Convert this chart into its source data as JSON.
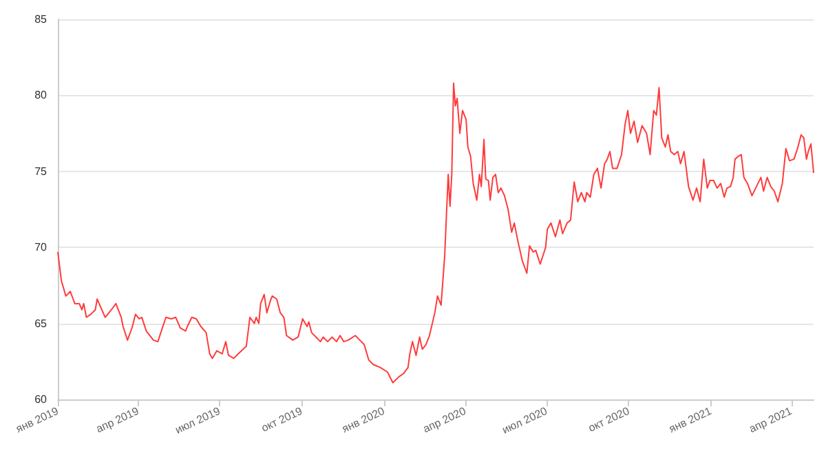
{
  "chart_data": {
    "type": "line",
    "color": "#ff3b3b",
    "line_style": "solid",
    "marker": "none",
    "grid": "y",
    "xlim": [
      "2019-01-01",
      "2021-04-26"
    ],
    "xticks": [
      {
        "value": "2019-01-01",
        "label": "янв 2019"
      },
      {
        "value": "2019-04-01",
        "label": "апр 2019"
      },
      {
        "value": "2019-07-01",
        "label": "июл 2019"
      },
      {
        "value": "2019-10-01",
        "label": "окт 2019"
      },
      {
        "value": "2020-01-01",
        "label": "янв 2020"
      },
      {
        "value": "2020-04-01",
        "label": "апр 2020"
      },
      {
        "value": "2020-07-01",
        "label": "июл 2020"
      },
      {
        "value": "2020-10-01",
        "label": "окт 2020"
      },
      {
        "value": "2021-01-01",
        "label": "янв 2021"
      },
      {
        "value": "2021-04-01",
        "label": "апр 2021"
      }
    ],
    "ylim": [
      60,
      85
    ],
    "yticks": [
      60,
      65,
      70,
      75,
      80,
      85
    ],
    "x": [
      "2019-01-01",
      "2019-01-05",
      "2019-01-10",
      "2019-01-15",
      "2019-01-20",
      "2019-01-25",
      "2019-01-28",
      "2019-01-30",
      "2019-02-02",
      "2019-02-07",
      "2019-02-12",
      "2019-02-14",
      "2019-02-17",
      "2019-02-23",
      "2019-03-02",
      "2019-03-07",
      "2019-03-13",
      "2019-03-15",
      "2019-03-20",
      "2019-03-25",
      "2019-03-29",
      "2019-04-02",
      "2019-04-05",
      "2019-04-10",
      "2019-04-18",
      "2019-04-23",
      "2019-04-28",
      "2019-05-02",
      "2019-05-08",
      "2019-05-13",
      "2019-05-18",
      "2019-05-24",
      "2019-05-26",
      "2019-05-31",
      "2019-06-05",
      "2019-06-10",
      "2019-06-16",
      "2019-06-20",
      "2019-06-23",
      "2019-06-28",
      "2019-07-04",
      "2019-07-08",
      "2019-07-11",
      "2019-07-17",
      "2019-07-22",
      "2019-07-31",
      "2019-08-04",
      "2019-08-09",
      "2019-08-11",
      "2019-08-14",
      "2019-08-16",
      "2019-08-20",
      "2019-08-23",
      "2019-08-27",
      "2019-08-29",
      "2019-09-03",
      "2019-09-07",
      "2019-09-11",
      "2019-09-14",
      "2019-09-21",
      "2019-09-27",
      "2019-10-02",
      "2019-10-07",
      "2019-10-09",
      "2019-10-12",
      "2019-10-17",
      "2019-10-22",
      "2019-10-25",
      "2019-10-30",
      "2019-11-04",
      "2019-11-09",
      "2019-11-13",
      "2019-11-17",
      "2019-11-22",
      "2019-11-30",
      "2019-12-05",
      "2019-12-10",
      "2019-12-15",
      "2019-12-20",
      "2019-12-28",
      "2020-01-05",
      "2020-01-11",
      "2020-01-18",
      "2020-01-23",
      "2020-01-28",
      "2020-01-30",
      "2020-02-02",
      "2020-02-06",
      "2020-02-10",
      "2020-02-13",
      "2020-02-17",
      "2020-02-21",
      "2020-02-27",
      "2020-03-01",
      "2020-03-05",
      "2020-03-09",
      "2020-03-13",
      "2020-03-15",
      "2020-03-17",
      "2020-03-19",
      "2020-03-21",
      "2020-03-23",
      "2020-03-26",
      "2020-03-29",
      "2020-04-02",
      "2020-04-04",
      "2020-04-07",
      "2020-04-10",
      "2020-04-14",
      "2020-04-17",
      "2020-04-19",
      "2020-04-22",
      "2020-04-24",
      "2020-04-27",
      "2020-04-29",
      "2020-05-02",
      "2020-05-05",
      "2020-05-08",
      "2020-05-11",
      "2020-05-15",
      "2020-05-19",
      "2020-05-23",
      "2020-05-26",
      "2020-05-30",
      "2020-06-04",
      "2020-06-09",
      "2020-06-12",
      "2020-06-16",
      "2020-06-19",
      "2020-06-24",
      "2020-06-30",
      "2020-07-02",
      "2020-07-06",
      "2020-07-11",
      "2020-07-16",
      "2020-07-19",
      "2020-07-24",
      "2020-07-28",
      "2020-08-01",
      "2020-08-05",
      "2020-08-09",
      "2020-08-13",
      "2020-08-15",
      "2020-08-19",
      "2020-08-23",
      "2020-08-27",
      "2020-08-31",
      "2020-09-04",
      "2020-09-07",
      "2020-09-10",
      "2020-09-13",
      "2020-09-18",
      "2020-09-23",
      "2020-09-27",
      "2020-09-30",
      "2020-10-03",
      "2020-10-07",
      "2020-10-11",
      "2020-10-16",
      "2020-10-21",
      "2020-10-25",
      "2020-10-29",
      "2020-11-01",
      "2020-11-04",
      "2020-11-07",
      "2020-11-11",
      "2020-11-14",
      "2020-11-17",
      "2020-11-21",
      "2020-11-25",
      "2020-11-28",
      "2020-12-02",
      "2020-12-07",
      "2020-12-12",
      "2020-12-16",
      "2020-12-20",
      "2020-12-24",
      "2020-12-28",
      "2020-12-31",
      "2021-01-04",
      "2021-01-08",
      "2021-01-12",
      "2021-01-16",
      "2021-01-19",
      "2021-01-23",
      "2021-01-26",
      "2021-01-28",
      "2021-02-01",
      "2021-02-04",
      "2021-02-07",
      "2021-02-11",
      "2021-02-16",
      "2021-02-21",
      "2021-02-26",
      "2021-03-01",
      "2021-03-05",
      "2021-03-09",
      "2021-03-13",
      "2021-03-17",
      "2021-03-22",
      "2021-03-26",
      "2021-03-30",
      "2021-04-04",
      "2021-04-08",
      "2021-04-12",
      "2021-04-15",
      "2021-04-18",
      "2021-04-20",
      "2021-04-23",
      "2021-04-26"
    ],
    "values": [
      69.7,
      67.8,
      66.8,
      67.1,
      66.3,
      66.3,
      65.9,
      66.3,
      65.4,
      65.6,
      65.9,
      66.6,
      66.2,
      65.4,
      65.9,
      66.3,
      65.4,
      64.8,
      63.9,
      64.7,
      65.6,
      65.3,
      65.4,
      64.5,
      63.9,
      63.8,
      64.7,
      65.4,
      65.3,
      65.4,
      64.7,
      64.5,
      64.8,
      65.4,
      65.3,
      64.8,
      64.4,
      63.0,
      62.7,
      63.2,
      63.0,
      63.8,
      62.9,
      62.7,
      63.0,
      63.5,
      65.4,
      65.0,
      65.4,
      65.0,
      66.3,
      66.9,
      65.7,
      66.5,
      66.8,
      66.6,
      65.7,
      65.4,
      64.2,
      63.9,
      64.1,
      65.3,
      64.8,
      65.1,
      64.4,
      64.1,
      63.8,
      64.1,
      63.8,
      64.1,
      63.8,
      64.2,
      63.8,
      63.9,
      64.2,
      63.9,
      63.6,
      62.6,
      62.3,
      62.1,
      61.8,
      61.1,
      61.5,
      61.7,
      62.1,
      63.0,
      63.8,
      62.9,
      64.1,
      63.3,
      63.6,
      64.2,
      65.7,
      66.8,
      66.2,
      69.4,
      74.8,
      72.7,
      74.8,
      80.8,
      79.3,
      79.8,
      77.5,
      79.0,
      78.4,
      76.6,
      76.0,
      74.2,
      73.1,
      74.8,
      74.0,
      77.1,
      74.5,
      74.4,
      73.1,
      74.6,
      74.8,
      73.6,
      73.9,
      73.4,
      72.5,
      71.0,
      71.6,
      70.4,
      69.1,
      68.3,
      70.1,
      69.7,
      69.8,
      68.9,
      70.0,
      71.2,
      71.6,
      70.7,
      71.8,
      70.9,
      71.6,
      71.8,
      74.3,
      73.0,
      73.6,
      73.0,
      73.6,
      73.3,
      74.8,
      75.2,
      73.9,
      75.5,
      75.8,
      76.3,
      75.2,
      75.2,
      76.1,
      78.1,
      79.0,
      77.5,
      78.3,
      76.9,
      78.0,
      77.5,
      76.1,
      79.0,
      78.7,
      80.5,
      77.2,
      76.6,
      77.4,
      76.3,
      76.1,
      76.3,
      75.5,
      76.3,
      74.0,
      73.1,
      73.9,
      73.0,
      75.8,
      73.9,
      74.4,
      74.4,
      73.9,
      74.2,
      73.3,
      73.9,
      74.0,
      74.6,
      75.8,
      76.0,
      76.1,
      74.6,
      74.2,
      73.4,
      74.0,
      74.6,
      73.7,
      74.6,
      74.0,
      73.7,
      73.0,
      74.2,
      76.5,
      75.7,
      75.8,
      76.5,
      77.4,
      77.2,
      75.8,
      76.3,
      76.8,
      74.9
    ]
  }
}
